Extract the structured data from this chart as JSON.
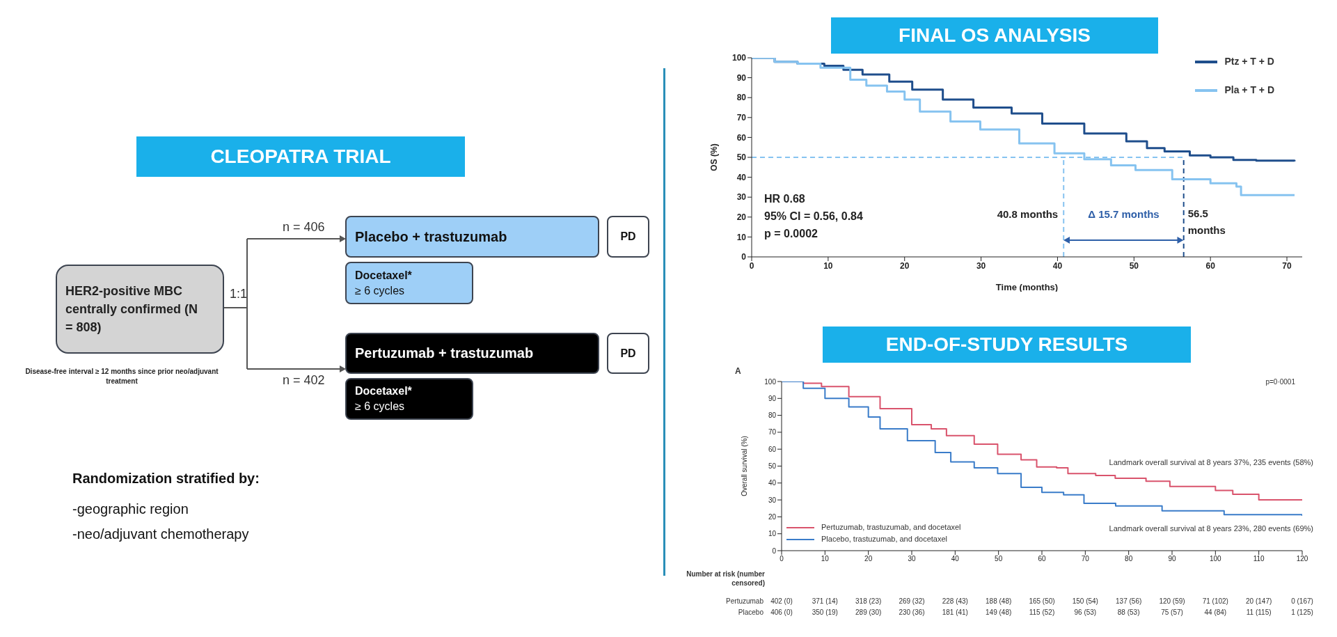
{
  "chart_data": [
    {
      "type": "other",
      "title": "CLEOPATRA TRIAL",
      "annotations": [
        "HER2-positive MBC centrally confirmed (N = 808)",
        "Disease-free interval ≥ 12 months since prior neo/adjuvant treatment",
        "1:1",
        "n = 406",
        "n = 402",
        "Placebo + trastuzumab",
        "Docetaxel*",
        "≥ 6 cycles",
        "PD",
        "Pertuzumab + trastuzumab",
        "Docetaxel*",
        "≥ 6 cycles",
        "PD",
        "Randomization stratified by:",
        "-geographic region",
        "-neo/adjuvant chemotherapy"
      ]
    },
    {
      "type": "step",
      "title": "FINAL OS ANALYSIS",
      "xlabel": "Time (months)",
      "ylabel": "OS (%)",
      "xlim": [
        0,
        72
      ],
      "xticks": [
        0,
        10,
        20,
        30,
        40,
        50,
        60,
        70
      ],
      "ylim": [
        0,
        100
      ],
      "yticks": [
        0,
        10,
        20,
        30,
        40,
        50,
        60,
        70,
        80,
        90,
        100
      ],
      "legend": "top right",
      "series": [
        {
          "name": "Ptz + T + D",
          "color": "#1f4e8c",
          "x": [
            0,
            3,
            6,
            9.5,
            12,
            14.5,
            18,
            21,
            25,
            29,
            34,
            38,
            43.5,
            49,
            51.7,
            54,
            57.3,
            60,
            63,
            66,
            71
          ],
          "values": [
            100,
            98,
            97,
            96,
            94,
            91.6,
            88,
            84,
            79,
            75,
            72,
            67,
            62,
            58,
            54.6,
            53,
            51,
            50,
            48.7,
            48.3,
            48
          ]
        },
        {
          "name": "Pla + T + D",
          "color": "#86c3f0",
          "x": [
            0,
            3,
            6,
            9,
            12.9,
            15,
            17.7,
            20,
            22,
            26,
            29.9,
            35,
            39.6,
            43.5,
            47,
            50.2,
            55,
            60,
            63.4,
            64,
            71
          ],
          "values": [
            100,
            98,
            97,
            95,
            89,
            86,
            83,
            79,
            73,
            68,
            64,
            57,
            52,
            49,
            46,
            43.6,
            39,
            37,
            35.3,
            31,
            31
          ]
        }
      ],
      "ref_lines": [
        {
          "axis": "y",
          "value": 50,
          "color": "#86c3f0",
          "line_style": "dashed"
        },
        {
          "axis": "x",
          "value": 40.8,
          "label": "40.8 months",
          "color": "#86c3f0",
          "line_style": "dashed"
        },
        {
          "axis": "x",
          "value": 56.5,
          "label": "56.5 months",
          "color": "#1f4e8c",
          "line_style": "dashed"
        }
      ],
      "annotations": [
        "HR 0.68",
        "95% CI = 0.56, 0.84",
        "p = 0.0002",
        "Δ 15.7 months"
      ]
    },
    {
      "type": "step",
      "title": "END-OF-STUDY RESULTS",
      "ylabel": "Overall survival (%)",
      "xlim": [
        0,
        120
      ],
      "xticks": [
        0,
        10,
        20,
        30,
        40,
        50,
        60,
        70,
        80,
        90,
        100,
        110,
        120
      ],
      "ylim": [
        0,
        100
      ],
      "yticks": [
        0,
        10,
        20,
        30,
        40,
        50,
        60,
        70,
        80,
        90,
        100
      ],
      "legend": "bottom left",
      "series": [
        {
          "name": "Pertuzumab, trastuzumab, and docetaxel",
          "color": "#d9536c",
          "x": [
            0,
            5,
            9.2,
            15.5,
            22.7,
            30,
            34.5,
            38,
            44.4,
            49.8,
            55.2,
            58.8,
            63.4,
            66,
            72.4,
            76.9,
            84,
            89.5,
            100,
            104,
            110,
            120
          ],
          "values": [
            100,
            99,
            97,
            91,
            84,
            74.5,
            72,
            68,
            63,
            57,
            53.7,
            49.5,
            49,
            45.6,
            44.4,
            42.8,
            41,
            38,
            35.6,
            33.3,
            30,
            30
          ]
        },
        {
          "name": "Placebo, trastuzumab, and docetaxel",
          "color": "#3a7cc9",
          "x": [
            0,
            5,
            10,
            15.5,
            20,
            22.7,
            29,
            35.4,
            39,
            44.4,
            49.8,
            55.2,
            60,
            65,
            69.7,
            77,
            87.7,
            102,
            120
          ],
          "values": [
            100,
            96,
            90,
            85,
            79,
            72,
            65,
            58,
            52.5,
            49,
            45.6,
            37.5,
            34.5,
            33,
            28,
            26.4,
            23.6,
            21.3,
            20.6
          ]
        }
      ],
      "annotations": [
        "A",
        "p=0·0001",
        "Landmark overall survival at 8 years 37%, 235 events (58%)",
        "Landmark overall survival at 8 years 23%, 280 events (69%)",
        "Number at risk (number censored)",
        "Pertuzumab",
        "Placebo",
        "402 (0)",
        "371 (14)",
        "318 (23)",
        "269 (32)",
        "228 (43)",
        "188 (48)",
        "165 (50)",
        "150 (54)",
        "137 (56)",
        "120 (59)",
        "71 (102)",
        "20 (147)",
        "0 (167)",
        "406 (0)",
        "350 (19)",
        "289 (30)",
        "230 (36)",
        "181 (41)",
        "149 (48)",
        "115 (52)",
        "96 (53)",
        "88 (53)",
        "75 (57)",
        "44 (84)",
        "11 (115)",
        "1 (125)"
      ]
    }
  ]
}
